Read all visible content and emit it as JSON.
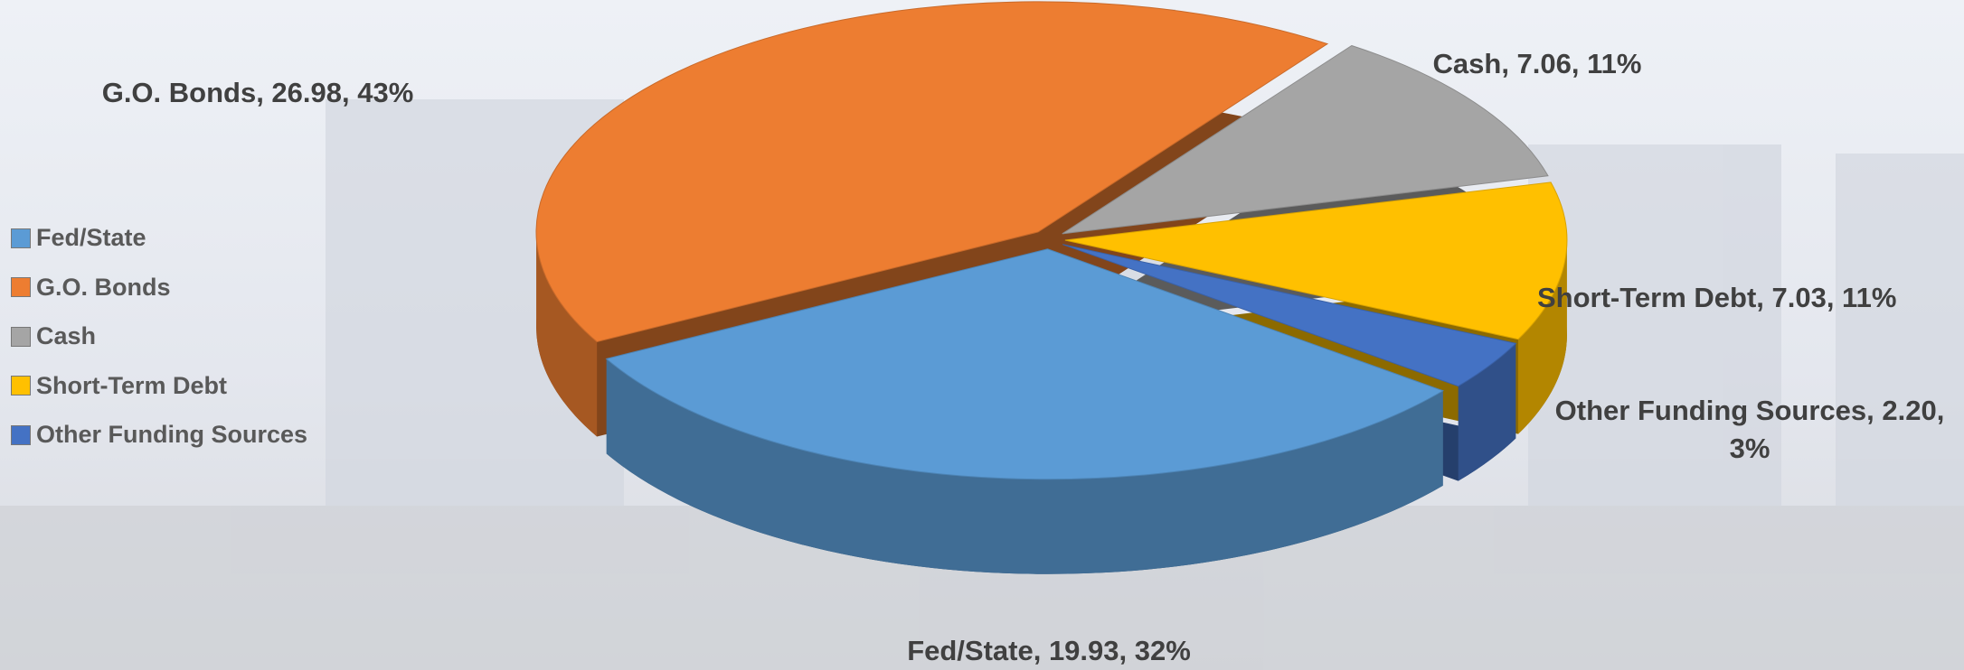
{
  "chart_data": {
    "type": "pie",
    "categories": [
      "Fed/State",
      "G.O. Bonds",
      "Cash",
      "Short-Term Debt",
      "Other Funding Sources"
    ],
    "values": [
      19.93,
      26.98,
      7.06,
      7.03,
      2.2
    ],
    "value_labels": [
      "Fed/State, 19.93, 32%",
      "G.O. Bonds, 26.98, 43%",
      "Cash, 7.06, 11%",
      "Short-Term Debt, 7.03, 11%",
      "Other Funding Sources, 2.20, 3%"
    ],
    "colors": [
      "#5b9bd5",
      "#ed7d31",
      "#a5a5a5",
      "#ffc000",
      "#4472c4"
    ],
    "legend": "left"
  }
}
